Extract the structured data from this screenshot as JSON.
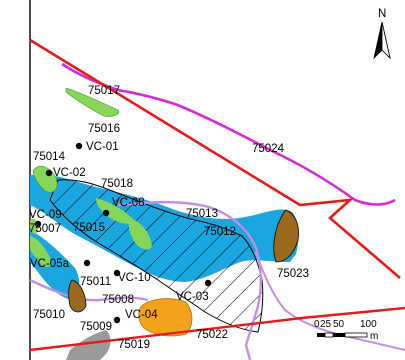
{
  "map": {
    "north_label": "N",
    "scale": {
      "ticks": [
        "0",
        "25",
        "50",
        "100"
      ],
      "unit": "m"
    },
    "colors": {
      "outline": "#e81919",
      "trace": "#d62ad6",
      "aquifer": "#1aa6df",
      "green_zone": "#86d65a",
      "brown_zone": "#9b6a1f",
      "orange_zone": "#f3a21b",
      "lilac_line": "#c48ee2",
      "grey_zone": "#9a9a9a"
    },
    "labels": {
      "z75017": "75017",
      "z75016": "75016",
      "z75014": "75014",
      "z75018": "75018",
      "z75024": "75024",
      "z75013": "75013",
      "z75012": "75012",
      "z75007": "75007",
      "z75015": "75015",
      "z75023": "75023",
      "z75011": "75011",
      "z75008": "75008",
      "z75010": "75010",
      "z75009": "75009",
      "z75022": "75022",
      "z75019": "75019"
    },
    "wells": {
      "vc01": "VC-01",
      "vc02": "VC-02",
      "vc08": "VC-08",
      "vc09": "VC-09",
      "vc05a": "VC-05a",
      "vc10": "VC-10",
      "vc03": "VC-03",
      "vc04": "VC-04"
    }
  }
}
